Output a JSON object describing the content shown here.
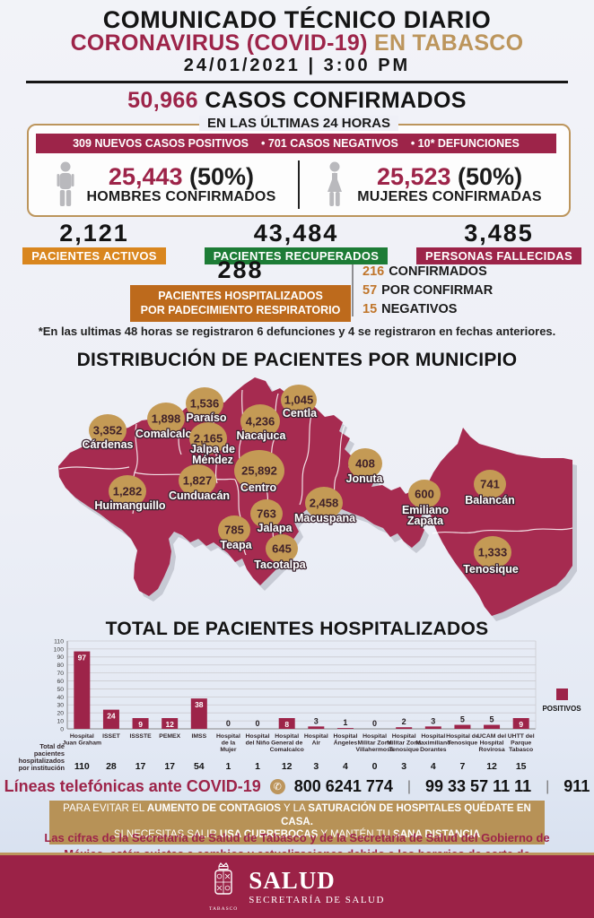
{
  "colors": {
    "guinda": "#9d2449",
    "gold": "#bc955c",
    "map_fill": "#a62b50",
    "orange": "#d9861e",
    "brown_orange": "#bd6a1c",
    "green": "#1d7c36",
    "icon_gray": "#b9b9bd",
    "circle_gold": "#c49a55"
  },
  "header": {
    "title": "COMUNICADO TÉCNICO DIARIO",
    "subtitle_main": "CORONAVIRUS (COVID-19)",
    "subtitle_accent": " EN TABASCO",
    "date": "24/01/2021",
    "date_sep": "|",
    "time": "3:00 PM",
    "confirmed_number": "50,966",
    "confirmed_label": " CASOS CONFIRMADOS",
    "last24": "EN LAS ÚLTIMAS 24 HORAS",
    "strip_items": [
      "309 NUEVOS CASOS POSITIVOS",
      "• 701 CASOS NEGATIVOS",
      "• 10* DEFUNCIONES"
    ]
  },
  "genders": [
    {
      "value": "25,443",
      "pct": " (50%)",
      "label": "HOMBRES CONFIRMADOS"
    },
    {
      "value": "25,523",
      "pct": " (50%)",
      "label": "MUJERES CONFIRMADAS"
    }
  ],
  "stats": [
    {
      "value": "2,121",
      "label": "PACIENTES ACTIVOS"
    },
    {
      "value": "43,484",
      "label": "PACIENTES RECUPERADOS"
    },
    {
      "value": "3,485",
      "label": "PERSONAS FALLECIDAS"
    }
  ],
  "hospitalized": {
    "value": "288",
    "label_line1": "PACIENTES HOSPITALIZADOS",
    "label_line2": "POR PADECIMIENTO RESPIRATORIO",
    "breakdown": [
      {
        "n": "216",
        "t": "CONFIRMADOS"
      },
      {
        "n": "57",
        "t": "POR CONFIRMAR"
      },
      {
        "n": "15",
        "t": "NEGATIVOS"
      }
    ]
  },
  "note": "*En las ultimas 48 horas se registraron 6 defunciones y 4 se registraron en fechas anteriores.",
  "map": {
    "title": "DISTRIBUCIÓN DE PACIENTES POR MUNICIPIO",
    "municipalities": [
      {
        "name": "Cárdenas",
        "value": "3,352"
      },
      {
        "name": "Comalcalco",
        "value": "1,898"
      },
      {
        "name": "Paraíso",
        "value": "1,536"
      },
      {
        "name": "Jalpa de\nMéndez",
        "value": "2,165"
      },
      {
        "name": "Nacajuca",
        "value": "4,236"
      },
      {
        "name": "Centla",
        "value": "1,045"
      },
      {
        "name": "Centro",
        "value": "25,892"
      },
      {
        "name": "Cunduacán",
        "value": "1,827"
      },
      {
        "name": "Huimanguillo",
        "value": "1,282"
      },
      {
        "name": "Jonuta",
        "value": "408"
      },
      {
        "name": "Macuspana",
        "value": "2,458"
      },
      {
        "name": "Jalapa",
        "value": "763"
      },
      {
        "name": "Teapa",
        "value": "785"
      },
      {
        "name": "Tacotalpa",
        "value": "645"
      },
      {
        "name": "Emiliano\nZapata",
        "value": "600"
      },
      {
        "name": "Balancán",
        "value": "741"
      },
      {
        "name": "Tenosique",
        "value": "1,333"
      }
    ]
  },
  "chart_data": {
    "type": "bar",
    "title": "TOTAL DE PACIENTES HOSPITALIZADOS",
    "ylim": [
      0,
      110
    ],
    "ytick_step": 10,
    "grid": true,
    "legend": [
      "POSITIVOS"
    ],
    "legend_position": "right",
    "categories": [
      "Hospital\nJuan Graham",
      "ISSET",
      "ISSSTE",
      "PEMEX",
      "IMSS",
      "Hospital\nde la\nMujer",
      "Hospital\ndel Niño",
      "Hospital\nGeneral de\nComalcalco",
      "Hospital\nAir",
      "Hospital\nÁngeles",
      "Hospital\nMilitar Zona\nVillahermosa",
      "Hospital\nMilitar Zona\nTenosique",
      "Hospital\nMaximiliano\nDorantes",
      "Hospital de\nTenosique",
      "UCAM del\nHospital\nRovirosa",
      "UHTT del\nParque\nTabasco"
    ],
    "series": [
      {
        "name": "POSITIVOS",
        "values": [
          97,
          24,
          9,
          12,
          38,
          0,
          0,
          8,
          3,
          1,
          0,
          2,
          3,
          5,
          5,
          9
        ]
      }
    ],
    "totals_row_label": "Total de\npacientes\nhospitalizados\npor institución",
    "totals": [
      110,
      28,
      17,
      17,
      54,
      1,
      1,
      12,
      3,
      4,
      0,
      3,
      4,
      7,
      12,
      15
    ]
  },
  "phones": {
    "label": "Líneas telefónicas ante COVID-19",
    "numbers": [
      "800 6241 774",
      "99 33 57 11 11",
      "911"
    ],
    "separator": "|"
  },
  "banner": {
    "line1": [
      {
        "t": "PARA EVITAR EL ",
        "b": 0
      },
      {
        "t": "AUMENTO DE CONTAGIOS",
        "b": 1
      },
      {
        "t": " Y LA ",
        "b": 0
      },
      {
        "t": "SATURACIÓN DE HOSPITALES QUÉDATE EN CASA.",
        "b": 1
      }
    ],
    "line2": [
      {
        "t": "SI NECESITAS SALIR ",
        "b": 0
      },
      {
        "t": "USA CUBREBOCAS",
        "b": 1
      },
      {
        "t": " Y MANTÉN TU ",
        "b": 0
      },
      {
        "t": "SANA DISTANCIA",
        "b": 1
      }
    ]
  },
  "disclaimer": "Las cifras de la Secretaría de Salud de Tabasco y de la Secretaría de Salud del Gobierno de México, están sujetas a cambios y actualizaciones debido a los horarios de corte de información.",
  "footer": {
    "org": "SALUD",
    "sub": "SECRETARÍA DE SALUD",
    "seal": "TABASCO"
  }
}
